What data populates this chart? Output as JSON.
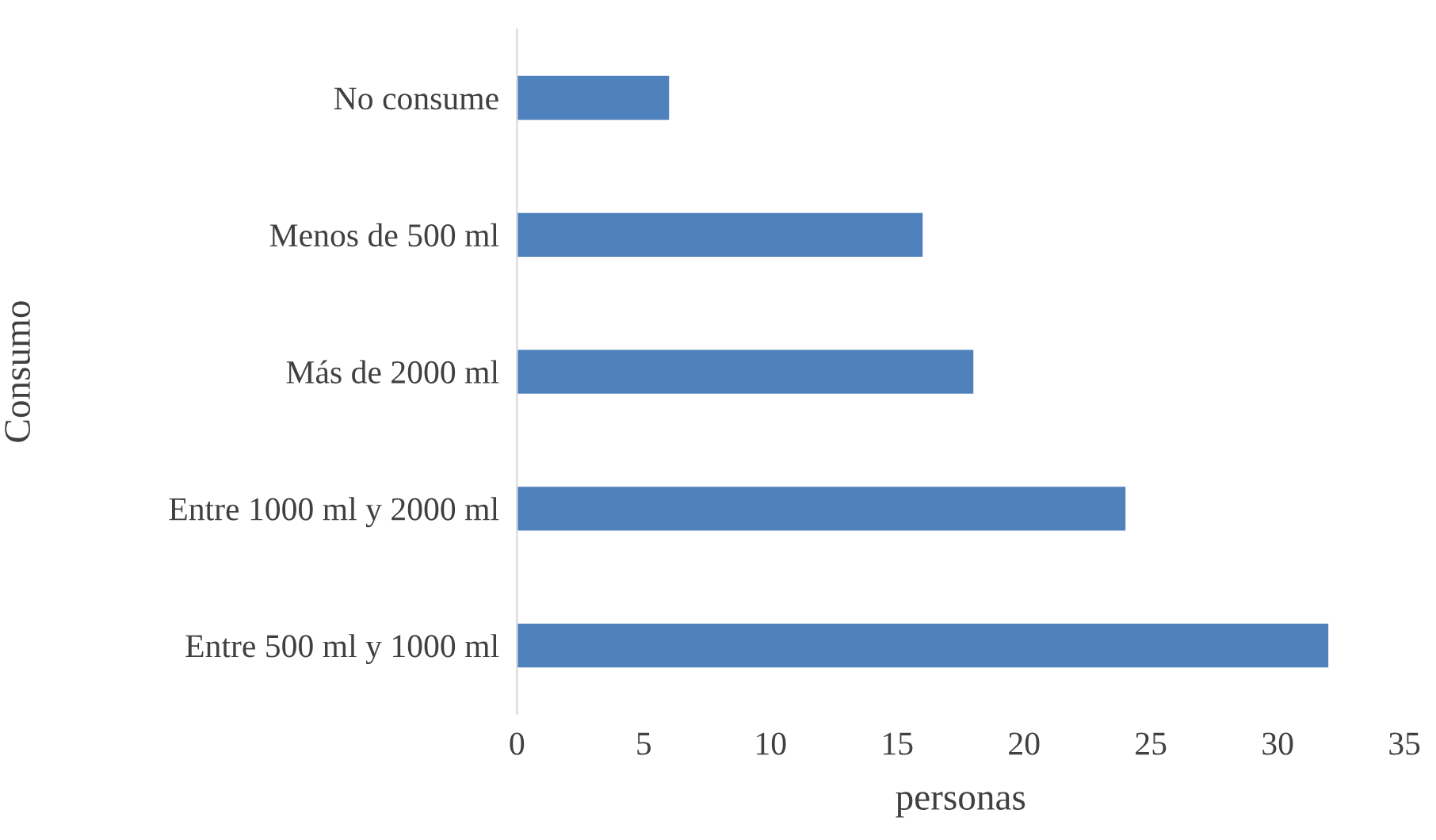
{
  "chart_data": {
    "type": "bar",
    "orientation": "horizontal",
    "xlabel": "personas",
    "ylabel": "Consumo",
    "categories": [
      "No consume",
      "Menos de 500 ml",
      "Más de 2000 ml",
      "Entre 1000 ml y 2000 ml",
      "Entre 500 ml y 1000 ml"
    ],
    "values": [
      6,
      16,
      18,
      24,
      32
    ],
    "color": "#4f81bd",
    "xlim": [
      0,
      35
    ],
    "xticks": [
      0,
      5,
      10,
      15,
      20,
      25,
      30,
      35
    ],
    "grid": false,
    "legend": false
  }
}
